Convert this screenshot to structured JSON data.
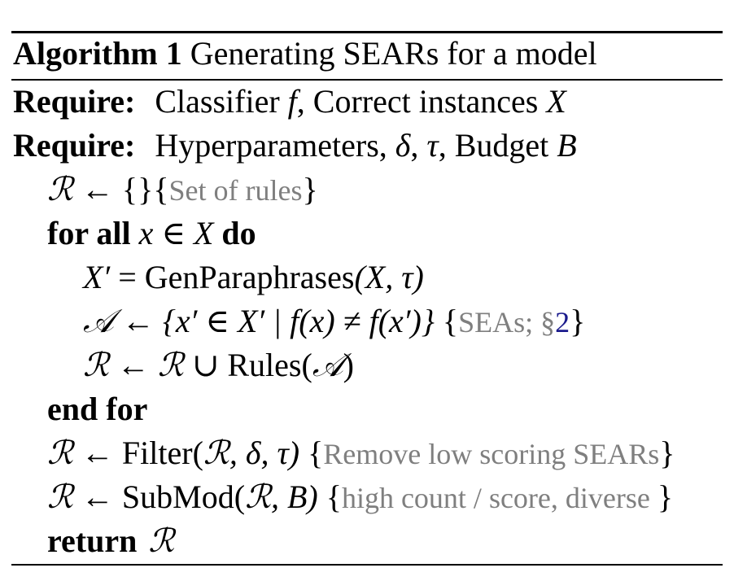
{
  "algorithm": {
    "label": "Algorithm 1",
    "title": "Generating SEARs for a model"
  },
  "require_1": {
    "keyword": "Require:",
    "text_a": "Classifier ",
    "var_f": "f",
    "text_b": ", Correct instances ",
    "var_X": "X"
  },
  "require_2": {
    "keyword": "Require:",
    "text_a": "Hyperparameters, ",
    "delta": "δ",
    "comma1": ", ",
    "tau": "τ",
    "text_b": ", Budget ",
    "var_B": "B"
  },
  "step_init": {
    "R": "ℛ",
    "arrow": " ← {}",
    "brace_open": "{",
    "comment": "Set of rules",
    "brace_close": "}"
  },
  "step_for": {
    "keyword": "for all",
    "var_x": "x",
    "in": " ∈ ",
    "var_X": "X",
    "do": "do"
  },
  "step_para": {
    "lhs": "X′",
    "eq": " = ",
    "func": "GenParaphrases",
    "args": "(X, τ)"
  },
  "step_A": {
    "A": "𝒜",
    "body": " ← {x′ ∈ X′ | f(x) ≠ f(x′)}",
    "brace_open": " {",
    "comment": "SEAs; §",
    "ref": "2",
    "brace_close": "}"
  },
  "step_union": {
    "R": "ℛ",
    "arrow": " ← ",
    "R2": "ℛ",
    "cup": " ∪ ",
    "func": "Rules",
    "open": "(",
    "A": "𝒜",
    "close": ")"
  },
  "step_endfor": {
    "keyword": "end for"
  },
  "step_filter": {
    "R": "ℛ",
    "arrow": " ← ",
    "func": "Filter",
    "open": "(",
    "R2": "ℛ",
    "args": ", δ, τ)",
    "brace_open": " {",
    "comment": "Remove low scoring SEARs",
    "brace_close": "}"
  },
  "step_submod": {
    "R": "ℛ",
    "arrow": " ← ",
    "func": "SubMod",
    "open": "(",
    "R2": "ℛ",
    "args": ", B)",
    "brace_open": " {",
    "comment": "high count / score, diverse ",
    "brace_close": "}"
  },
  "step_return": {
    "keyword": "return",
    "R": "ℛ"
  }
}
